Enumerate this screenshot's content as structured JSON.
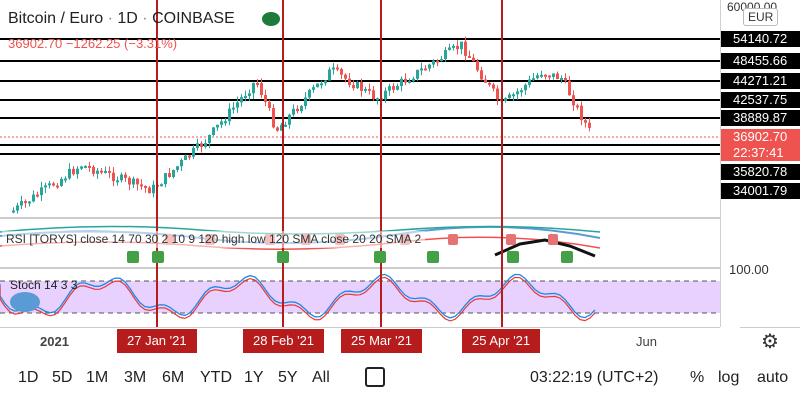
{
  "header": {
    "symbol": "Bitcoin / Euro",
    "interval": "1D",
    "exchange": "COINBASE",
    "change_line": "36902.70  −1262.25 (−3.31%)"
  },
  "price_axis": {
    "top_value": "60000.00",
    "currency": "EUR",
    "levels": [
      "54140.72",
      "48455.66",
      "44271.21",
      "42537.75",
      "38889.87",
      "35820.78",
      "34001.79"
    ],
    "current_price": "36902.70",
    "countdown": "22:37:41",
    "stoch_level": "100.00"
  },
  "indicators": {
    "overlay_label": "RSI [TORYS] close 14 70 30 2 10 9 120 high low 120 SMA close 20 20 SMA 2",
    "stoch_label": "Stoch 14 3 3"
  },
  "time_axis": {
    "labels": [
      "2021",
      "Jun"
    ],
    "markers": [
      "27 Jan '21",
      "28 Feb '21",
      "25 Mar '21",
      "25 Apr '21"
    ]
  },
  "bottom_bar": {
    "ranges": [
      "1D",
      "5D",
      "1M",
      "3M",
      "6M",
      "YTD",
      "1Y",
      "5Y",
      "All"
    ],
    "time": "03:22:19 (UTC+2)",
    "percent_label": "%",
    "log_label": "log",
    "auto_label": "auto"
  },
  "colors": {
    "up": "#26a69a",
    "down": "#ef5350",
    "marker_line": "#b71c1c",
    "level_line": "#000000",
    "stoch_band": "#d9b3ff"
  },
  "icons": [
    "eye-icon",
    "cloud-icon",
    "compare-icon",
    "gear-icon"
  ]
}
